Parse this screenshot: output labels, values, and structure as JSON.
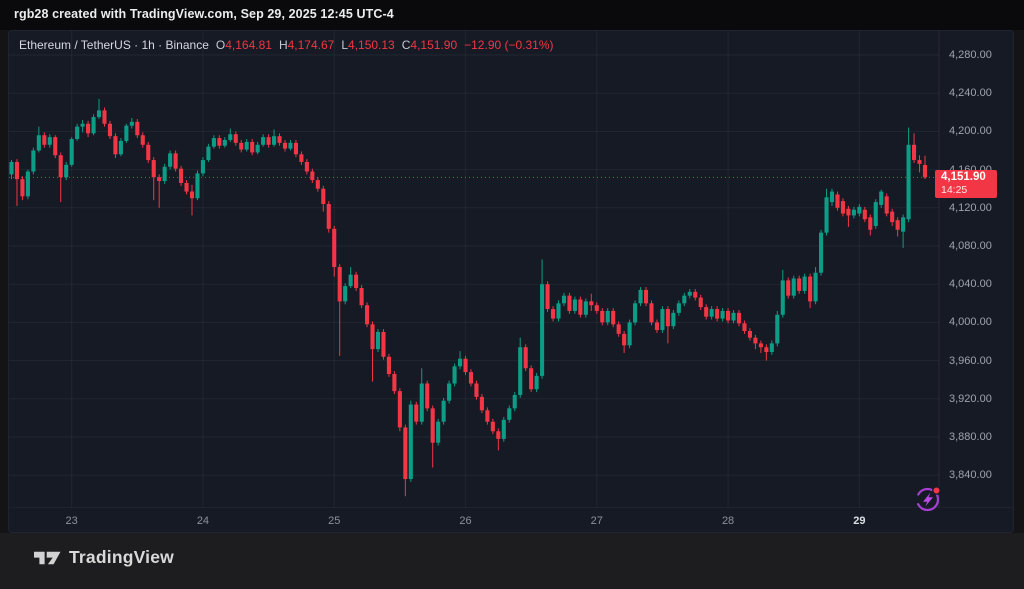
{
  "header": {
    "title": "rgb28 created with TradingView.com, Sep 29, 2025 12:45 UTC-4"
  },
  "legend": {
    "symbol_line": "Ethereum / TetherUS · 1h · Binance",
    "open_label": "O",
    "open": "4,164.81",
    "high_label": "H",
    "high": "4,174.67",
    "low_label": "L",
    "low": "4,150.13",
    "close_label": "C",
    "close": "4,151.90",
    "change": "−12.90 (−0.31%)"
  },
  "price_label": {
    "price": "4,151.90",
    "countdown": "14:25"
  },
  "footer": {
    "brand": "TradingView"
  },
  "colors": {
    "up": "#0d9c85",
    "down": "#f23645",
    "accent_red": "#f23645",
    "panel_bg": "#161a25",
    "grid": "rgba(255,255,255,0.05)",
    "axis_border": "rgba(255,255,255,0.08)",
    "axis_text": "#9fa3ae",
    "purple_icon": "#a63fd4"
  },
  "chart_data": {
    "type": "candlestick",
    "title": "Ethereum / TetherUS",
    "interval": "1h",
    "exchange": "Binance",
    "last": {
      "open": 4164.81,
      "high": 4174.67,
      "low": 4150.13,
      "close": 4151.9,
      "change": -12.9,
      "change_pct": -0.31
    },
    "current_price": 4151.9,
    "countdown": "14:25",
    "ylim": [
      3820,
      4290
    ],
    "grid": true,
    "price_ticks": [
      4280,
      4240,
      4200,
      4160,
      4120,
      4080,
      4040,
      4000,
      3960,
      3920,
      3880,
      3840
    ],
    "time_ticks": [
      {
        "label": "23",
        "index": 11
      },
      {
        "label": "24",
        "index": 35
      },
      {
        "label": "25",
        "index": 59
      },
      {
        "label": "26",
        "index": 83
      },
      {
        "label": "27",
        "index": 107
      },
      {
        "label": "28",
        "index": 131
      },
      {
        "label": "29",
        "index": 155,
        "bold": true
      }
    ],
    "candles": [
      [
        4155,
        4170,
        4150,
        4168
      ],
      [
        4168,
        4171,
        4122,
        4150
      ],
      [
        4150,
        4153,
        4128,
        4132
      ],
      [
        4132,
        4160,
        4129,
        4158
      ],
      [
        4158,
        4183,
        4155,
        4180
      ],
      [
        4180,
        4205,
        4178,
        4196
      ],
      [
        4196,
        4199,
        4183,
        4186
      ],
      [
        4186,
        4197,
        4183,
        4194
      ],
      [
        4194,
        4196,
        4172,
        4175
      ],
      [
        4175,
        4178,
        4126,
        4152
      ],
      [
        4152,
        4168,
        4149,
        4165
      ],
      [
        4165,
        4194,
        4163,
        4192
      ],
      [
        4192,
        4208,
        4190,
        4205
      ],
      [
        4205,
        4212,
        4199,
        4208
      ],
      [
        4208,
        4211,
        4194,
        4198
      ],
      [
        4198,
        4218,
        4196,
        4215
      ],
      [
        4215,
        4234,
        4213,
        4222
      ],
      [
        4222,
        4225,
        4205,
        4208
      ],
      [
        4208,
        4211,
        4192,
        4195
      ],
      [
        4195,
        4198,
        4172,
        4176
      ],
      [
        4176,
        4193,
        4174,
        4190
      ],
      [
        4190,
        4208,
        4188,
        4206
      ],
      [
        4206,
        4214,
        4203,
        4210
      ],
      [
        4210,
        4213,
        4193,
        4196
      ],
      [
        4196,
        4199,
        4183,
        4186
      ],
      [
        4186,
        4189,
        4167,
        4170
      ],
      [
        4170,
        4173,
        4128,
        4152
      ],
      [
        4152,
        4155,
        4120,
        4148
      ],
      [
        4148,
        4166,
        4145,
        4163
      ],
      [
        4163,
        4180,
        4160,
        4177
      ],
      [
        4177,
        4180,
        4158,
        4161
      ],
      [
        4161,
        4164,
        4143,
        4146
      ],
      [
        4146,
        4149,
        4134,
        4137
      ],
      [
        4137,
        4144,
        4112,
        4130
      ],
      [
        4130,
        4159,
        4128,
        4156
      ],
      [
        4156,
        4173,
        4153,
        4170
      ],
      [
        4170,
        4187,
        4168,
        4184
      ],
      [
        4184,
        4196,
        4182,
        4193
      ],
      [
        4193,
        4196,
        4182,
        4185
      ],
      [
        4185,
        4194,
        4183,
        4191
      ],
      [
        4191,
        4203,
        4189,
        4197
      ],
      [
        4197,
        4200,
        4185,
        4188
      ],
      [
        4188,
        4191,
        4178,
        4181
      ],
      [
        4181,
        4192,
        4179,
        4189
      ],
      [
        4189,
        4192,
        4175,
        4178
      ],
      [
        4178,
        4189,
        4176,
        4186
      ],
      [
        4186,
        4197,
        4184,
        4194
      ],
      [
        4194,
        4197,
        4183,
        4186
      ],
      [
        4186,
        4202,
        4184,
        4195
      ],
      [
        4195,
        4198,
        4185,
        4188
      ],
      [
        4188,
        4191,
        4179,
        4182
      ],
      [
        4182,
        4191,
        4180,
        4188
      ],
      [
        4188,
        4191,
        4173,
        4176
      ],
      [
        4176,
        4179,
        4165,
        4168
      ],
      [
        4168,
        4171,
        4155,
        4158
      ],
      [
        4158,
        4161,
        4146,
        4149
      ],
      [
        4149,
        4152,
        4137,
        4140
      ],
      [
        4140,
        4143,
        4116,
        4124
      ],
      [
        4124,
        4127,
        4094,
        4098
      ],
      [
        4098,
        4101,
        4048,
        4058
      ],
      [
        4058,
        4061,
        3965,
        4022
      ],
      [
        4022,
        4041,
        4019,
        4038
      ],
      [
        4038,
        4058,
        4036,
        4050
      ],
      [
        4050,
        4053,
        4033,
        4036
      ],
      [
        4036,
        4039,
        4015,
        4018
      ],
      [
        4018,
        4021,
        3995,
        3998
      ],
      [
        3998,
        4001,
        3938,
        3972
      ],
      [
        3972,
        3993,
        3969,
        3990
      ],
      [
        3990,
        3993,
        3961,
        3964
      ],
      [
        3964,
        3967,
        3943,
        3946
      ],
      [
        3946,
        3949,
        3925,
        3928
      ],
      [
        3928,
        3931,
        3886,
        3890
      ],
      [
        3890,
        3893,
        3818,
        3836
      ],
      [
        3836,
        3918,
        3833,
        3914
      ],
      [
        3914,
        3917,
        3893,
        3896
      ],
      [
        3896,
        3952,
        3893,
        3936
      ],
      [
        3936,
        3939,
        3907,
        3910
      ],
      [
        3910,
        3913,
        3848,
        3874
      ],
      [
        3874,
        3899,
        3871,
        3896
      ],
      [
        3896,
        3921,
        3893,
        3918
      ],
      [
        3918,
        3939,
        3915,
        3936
      ],
      [
        3936,
        3957,
        3933,
        3954
      ],
      [
        3954,
        3970,
        3951,
        3962
      ],
      [
        3962,
        3965,
        3945,
        3948
      ],
      [
        3948,
        3951,
        3933,
        3936
      ],
      [
        3936,
        3939,
        3919,
        3922
      ],
      [
        3922,
        3925,
        3905,
        3908
      ],
      [
        3908,
        3911,
        3893,
        3896
      ],
      [
        3896,
        3899,
        3883,
        3886
      ],
      [
        3886,
        3889,
        3866,
        3878
      ],
      [
        3878,
        3901,
        3875,
        3898
      ],
      [
        3898,
        3913,
        3895,
        3910
      ],
      [
        3910,
        3927,
        3907,
        3924
      ],
      [
        3924,
        3984,
        3921,
        3974
      ],
      [
        3974,
        3977,
        3949,
        3952
      ],
      [
        3952,
        3955,
        3927,
        3930
      ],
      [
        3930,
        3947,
        3927,
        3944
      ],
      [
        3944,
        4066,
        3941,
        4040
      ],
      [
        4040,
        4043,
        4011,
        4014
      ],
      [
        4014,
        4017,
        4001,
        4004
      ],
      [
        4004,
        4023,
        4001,
        4020
      ],
      [
        4020,
        4031,
        4017,
        4028
      ],
      [
        4028,
        4031,
        4009,
        4012
      ],
      [
        4012,
        4027,
        4009,
        4024
      ],
      [
        4024,
        4027,
        4005,
        4008
      ],
      [
        4008,
        4025,
        4005,
        4022
      ],
      [
        4022,
        4030,
        4012,
        4018
      ],
      [
        4018,
        4021,
        4009,
        4012
      ],
      [
        4012,
        4015,
        3997,
        4000
      ],
      [
        4000,
        4015,
        3997,
        4012
      ],
      [
        4012,
        4015,
        3995,
        3998
      ],
      [
        3998,
        4001,
        3985,
        3988
      ],
      [
        3988,
        3991,
        3968,
        3976
      ],
      [
        3976,
        4003,
        3973,
        4000
      ],
      [
        4000,
        4023,
        3997,
        4020
      ],
      [
        4020,
        4037,
        4017,
        4034
      ],
      [
        4034,
        4037,
        4017,
        4020
      ],
      [
        4020,
        4023,
        3997,
        4000
      ],
      [
        4000,
        4003,
        3989,
        3992
      ],
      [
        3992,
        4017,
        3989,
        4014
      ],
      [
        4014,
        4017,
        3978,
        3996
      ],
      [
        3996,
        4013,
        3993,
        4010
      ],
      [
        4010,
        4023,
        4007,
        4020
      ],
      [
        4020,
        4031,
        4017,
        4028
      ],
      [
        4028,
        4035,
        4025,
        4032
      ],
      [
        4032,
        4035,
        4023,
        4026
      ],
      [
        4026,
        4029,
        4013,
        4016
      ],
      [
        4016,
        4019,
        4003,
        4006
      ],
      [
        4006,
        4017,
        4003,
        4014
      ],
      [
        4014,
        4017,
        4001,
        4004
      ],
      [
        4004,
        4015,
        4001,
        4012
      ],
      [
        4012,
        4015,
        3999,
        4002
      ],
      [
        4002,
        4013,
        3999,
        4010
      ],
      [
        4010,
        4013,
        3996,
        3999
      ],
      [
        3999,
        4002,
        3988,
        3991
      ],
      [
        3991,
        3994,
        3981,
        3984
      ],
      [
        3984,
        3987,
        3972,
        3978
      ],
      [
        3978,
        3981,
        3968,
        3974
      ],
      [
        3974,
        3977,
        3960,
        3969
      ],
      [
        3969,
        3981,
        3966,
        3978
      ],
      [
        3978,
        4012,
        3975,
        4008
      ],
      [
        4008,
        4055,
        4005,
        4044
      ],
      [
        4044,
        4047,
        4025,
        4028
      ],
      [
        4028,
        4049,
        4025,
        4046
      ],
      [
        4046,
        4049,
        4030,
        4033
      ],
      [
        4033,
        4051,
        4030,
        4048
      ],
      [
        4048,
        4051,
        4015,
        4022
      ],
      [
        4022,
        4058,
        4019,
        4052
      ],
      [
        4052,
        4097,
        4049,
        4094
      ],
      [
        4094,
        4140,
        4091,
        4131
      ],
      [
        4126,
        4140,
        4122,
        4137
      ],
      [
        4134,
        4137,
        4117,
        4120
      ],
      [
        4127,
        4130,
        4111,
        4114
      ],
      [
        4119,
        4122,
        4100,
        4112
      ],
      [
        4112,
        4121,
        4109,
        4118
      ],
      [
        4114,
        4124,
        4111,
        4121
      ],
      [
        4118,
        4121,
        4105,
        4108
      ],
      [
        4110,
        4113,
        4091,
        4097
      ],
      [
        4101,
        4129,
        4098,
        4126
      ],
      [
        4123,
        4139,
        4120,
        4137
      ],
      [
        4132,
        4135,
        4111,
        4114
      ],
      [
        4116,
        4119,
        4101,
        4105
      ],
      [
        4107,
        4110,
        4090,
        4097
      ],
      [
        4095,
        4113,
        4078,
        4110
      ],
      [
        4108,
        4204,
        4105,
        4186
      ],
      [
        4186,
        4198,
        4167,
        4170
      ],
      [
        4170,
        4175,
        4157,
        4166
      ],
      [
        4164.81,
        4174.67,
        4150.13,
        4151.9
      ]
    ]
  }
}
